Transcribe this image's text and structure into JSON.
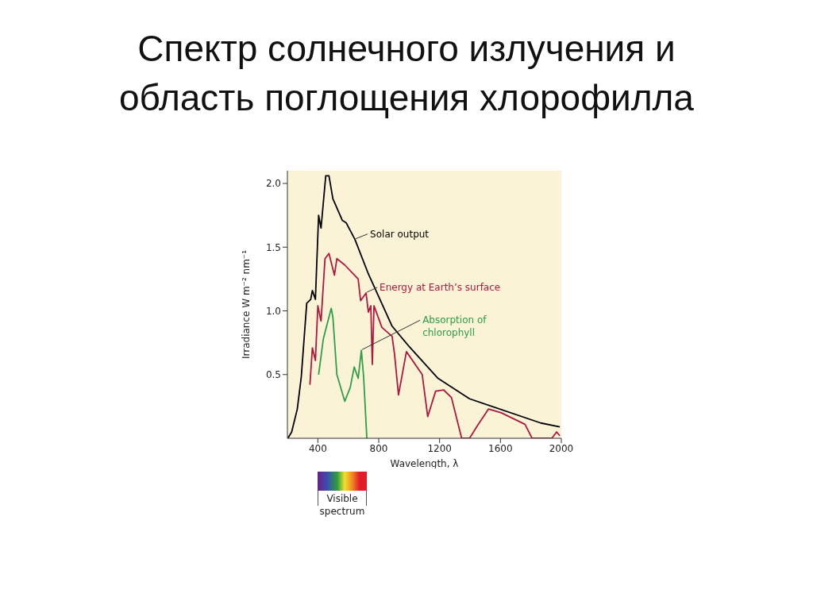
{
  "chart_data": {
    "type": "line",
    "title": "Спектр солнечного излучения и область поглощения хлорофилла",
    "xlabel": "Wavelength, λ",
    "ylabel": "Irradiance W m⁻² nm⁻¹",
    "xlim": [
      200,
      2000
    ],
    "ylim": [
      0,
      2.1
    ],
    "xticks": [
      400,
      800,
      1200,
      1600,
      2000
    ],
    "yticks": [
      {
        "value": 0.5,
        "label": "0.5"
      },
      {
        "value": 1,
        "label": "1.0"
      },
      {
        "value": 1.5,
        "label": "1.5"
      },
      {
        "value": 2,
        "label": "2.0"
      }
    ],
    "annotations": [
      "Visible spectrum"
    ],
    "series": [
      {
        "name": "Solar output",
        "color": "#000000",
        "x": [
          203,
          228,
          265,
          291,
          327,
          353,
          364,
          384,
          405,
          421,
          452,
          473,
          499,
          561,
          587,
          644,
          732,
          888,
          1000,
          1190,
          1397,
          1865,
          1990
        ],
        "values": [
          0,
          0.05,
          0.23,
          0.48,
          1.06,
          1.09,
          1.16,
          1.09,
          1.75,
          1.65,
          2.06,
          2.06,
          1.88,
          1.71,
          1.69,
          1.56,
          1.29,
          0.88,
          0.72,
          0.47,
          0.31,
          0.12,
          0.09
        ]
      },
      {
        "name": "Energy at Earth’s surface",
        "color": "#b0173f",
        "x": [
          348,
          364,
          384,
          400,
          421,
          447,
          473,
          509,
          525,
          577,
          665,
          681,
          717,
          732,
          748,
          758,
          769,
          821,
          888,
          904,
          930,
          982,
          1086,
          1122,
          1174,
          1226,
          1278,
          1345,
          1397,
          1449,
          1522,
          1605,
          1761,
          1808,
          1938,
          1969,
          1990
        ],
        "values": [
          0.42,
          0.71,
          0.61,
          1.04,
          0.92,
          1.41,
          1.45,
          1.28,
          1.41,
          1.36,
          1.25,
          1.08,
          1.14,
          0.99,
          1.04,
          0.58,
          1.04,
          0.87,
          0.8,
          0.66,
          0.34,
          0.68,
          0.5,
          0.17,
          0.37,
          0.38,
          0.32,
          0,
          0,
          0.1,
          0.23,
          0.2,
          0.11,
          0,
          0,
          0.05,
          0.02
        ]
      },
      {
        "name": "Absorption of chlorophyll",
        "color": "#2e9e48",
        "x": [
          405,
          436,
          473,
          488,
          499,
          525,
          577,
          613,
          639,
          665,
          686,
          701,
          722
        ],
        "values": [
          0.5,
          0.78,
          0.95,
          1.02,
          0.95,
          0.5,
          0.29,
          0.4,
          0.56,
          0.47,
          0.69,
          0.48,
          0
        ]
      }
    ]
  }
}
